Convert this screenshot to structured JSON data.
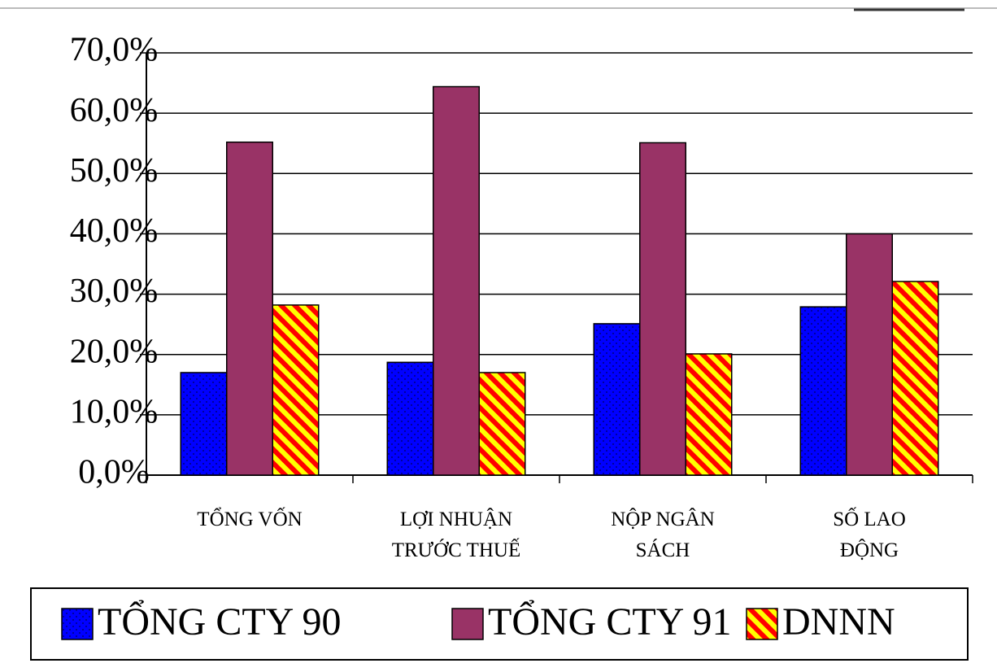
{
  "chart_data": {
    "type": "bar",
    "categories": [
      "TỔNG VỐN",
      "LỢI NHUẬN\nTRƯỚC THUẾ",
      "NỘP NGÂN\nSÁCH",
      "SỐ LAO\nĐỘNG"
    ],
    "series": [
      {
        "name": "TỔNG CTY 90",
        "color": "#0000ff",
        "pattern": "dots",
        "values": [
          17.0,
          18.7,
          25.1,
          27.9
        ]
      },
      {
        "name": "TỔNG CTY 91",
        "color": "#993366",
        "pattern": "solid",
        "values": [
          55.2,
          64.4,
          55.1,
          40.0
        ]
      },
      {
        "name": "DNNN",
        "color": "#ffff00",
        "pattern": "stripes",
        "values": [
          28.2,
          17.0,
          20.1,
          32.1
        ]
      }
    ],
    "ylim": [
      0,
      70
    ],
    "yticks": [
      {
        "value": 0,
        "label": "0,0%"
      },
      {
        "value": 10,
        "label": "10,0%"
      },
      {
        "value": 20,
        "label": "20,0%"
      },
      {
        "value": 30,
        "label": "30,0%"
      },
      {
        "value": 40,
        "label": "40,0%"
      },
      {
        "value": 50,
        "label": "50,0%"
      },
      {
        "value": 60,
        "label": "60,0%"
      },
      {
        "value": 70,
        "label": "70,0%"
      }
    ],
    "grid": true,
    "legend": "bottom"
  }
}
